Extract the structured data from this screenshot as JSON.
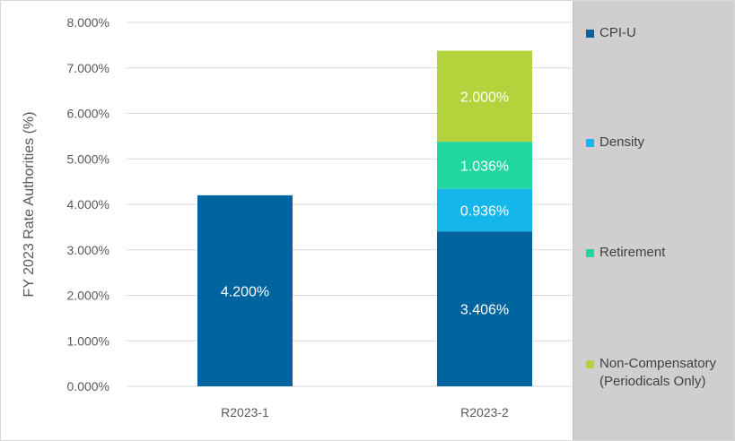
{
  "chart_data": {
    "type": "bar",
    "stacked": true,
    "categories": [
      "R2023-1",
      "R2023-2"
    ],
    "series": [
      {
        "name": "CPI-U",
        "color": "#00659e",
        "values": [
          4.2,
          3.406
        ],
        "labels": [
          "4.200%",
          "3.406%"
        ]
      },
      {
        "name": "Density",
        "color": "#15b7ea",
        "values": [
          0,
          0.936
        ],
        "labels": [
          "",
          "0.936%"
        ]
      },
      {
        "name": "Retirement",
        "color": "#22d6a0",
        "values": [
          0,
          1.036
        ],
        "labels": [
          "",
          "1.036%"
        ]
      },
      {
        "name": "Non-Compensatory (Periodicals Only)",
        "color": "#b4d23b",
        "values": [
          0,
          2.0
        ],
        "labels": [
          "",
          "2.000%"
        ]
      }
    ],
    "ylabel": "FY 2023 Rate Authorities (%)",
    "xlabel": "",
    "ylim": [
      0,
      8
    ],
    "yticks": [
      "0.000%",
      "1.000%",
      "2.000%",
      "3.000%",
      "4.000%",
      "5.000%",
      "6.000%",
      "7.000%",
      "8.000%"
    ],
    "grid": true,
    "legend_position": "right"
  },
  "legend": {
    "items": [
      {
        "label": "CPI-U",
        "color": "#00659e"
      },
      {
        "label": "Density",
        "color": "#15b7ea"
      },
      {
        "label": "Retirement",
        "color": "#22d6a0"
      },
      {
        "label": "Non-Compensatory (Periodicals Only)",
        "color": "#b4d23b"
      }
    ]
  }
}
